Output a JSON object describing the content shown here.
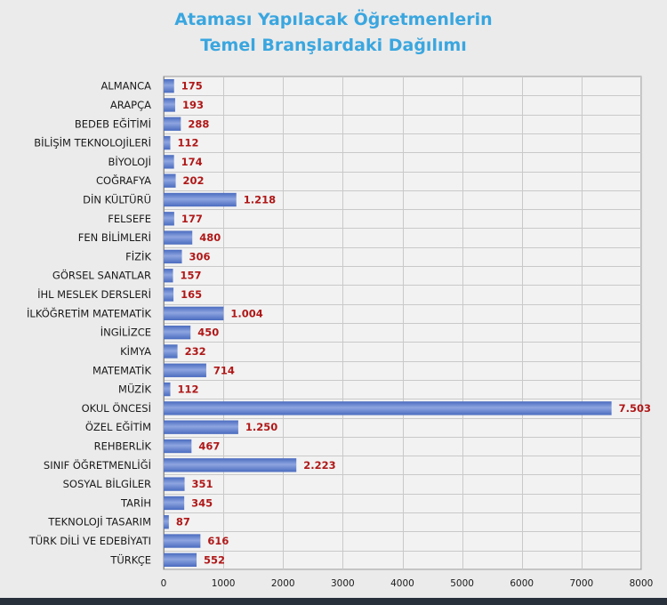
{
  "chart_data": {
    "type": "bar",
    "orientation": "horizontal",
    "title_lines": [
      "Ataması Yapılacak Öğretmenlerin",
      "Temel Branşlardaki Dağılımı"
    ],
    "categories": [
      "ALMANCA",
      "ARAPÇA",
      "BEDEB EĞİTİMİ",
      "BİLİŞİM TEKNOLOJİLERİ",
      "BİYOLOJİ",
      "COĞRAFYA",
      "DİN KÜLTÜRÜ",
      "FELSEFE",
      "FEN BİLİMLERİ",
      "FİZİK",
      "GÖRSEL SANATLAR",
      "İHL MESLEK DERSLERİ",
      "İLKÖĞRETİM MATEMATİK",
      "İNGİLİZCE",
      "KİMYA",
      "MATEMATİK",
      "MÜZİK",
      "OKUL ÖNCESİ",
      "ÖZEL EĞİTİM",
      "REHBERLİK",
      "SINIF ÖĞRETMENLİĞİ",
      "SOSYAL BİLGİLER",
      "TARİH",
      "TEKNOLOJİ TASARIM",
      "TÜRK DİLİ VE EDEBİYATI",
      "TÜRKÇE"
    ],
    "values": [
      175,
      193,
      288,
      112,
      174,
      202,
      1218,
      177,
      480,
      306,
      157,
      165,
      1004,
      450,
      232,
      714,
      112,
      7503,
      1250,
      467,
      2223,
      351,
      345,
      87,
      616,
      552
    ],
    "value_labels": [
      "175",
      "193",
      "288",
      "112",
      "174",
      "202",
      "1.218",
      "177",
      "480",
      "306",
      "157",
      "165",
      "1.004",
      "450",
      "232",
      "714",
      "112",
      "7.503",
      "1.250",
      "467",
      "2.223",
      "351",
      "345",
      "87",
      "616",
      "552"
    ],
    "xlim": [
      0,
      8000
    ],
    "xticks": [
      0,
      1000,
      2000,
      3000,
      4000,
      5000,
      6000,
      7000,
      8000
    ],
    "xtick_labels": [
      "0",
      "1000",
      "2000",
      "3000",
      "4000",
      "5000",
      "6000",
      "7000",
      "8000"
    ],
    "grid": true,
    "legend": "none",
    "colors": {
      "title": "#3aa6df",
      "bar": "#4a6bbf",
      "bar_light": "#8ea5e0",
      "value_label": "#b01818",
      "grid": "#c9c9c9",
      "axis": "#8f8f8f"
    }
  }
}
